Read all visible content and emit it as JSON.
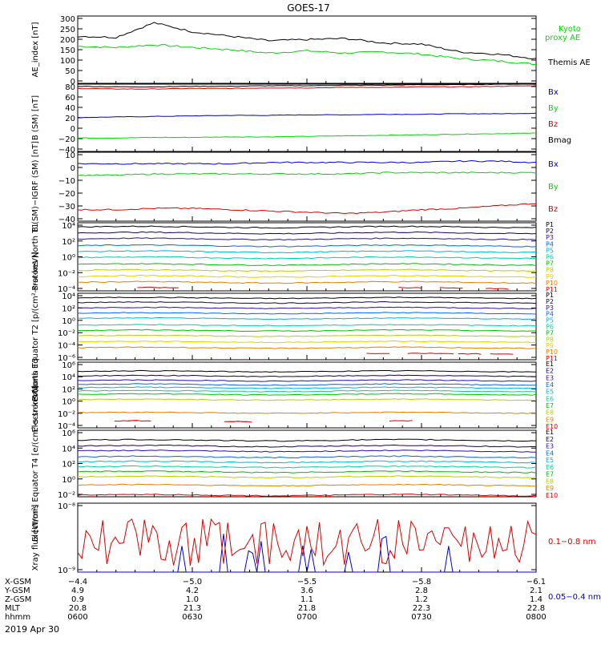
{
  "title": "GOES-17",
  "date_label": "2019 Apr 30",
  "colors": {
    "black": "#000000",
    "green": "#00d800",
    "blue": "#0000d8",
    "red": "#d80000",
    "p_colors": [
      "#000000",
      "#1a004d",
      "#2a0fa0",
      "#0066ff",
      "#00b4d8",
      "#00d0a0",
      "#00c000",
      "#b4d000",
      "#e0d000",
      "#e08000",
      "#e00000"
    ],
    "e_colors": [
      "#000000",
      "#1a004d",
      "#2a0fa0",
      "#0066ff",
      "#00b4d8",
      "#00d0a0",
      "#00c000",
      "#b4d000",
      "#e08000",
      "#e00000"
    ]
  },
  "chart_data": [
    {
      "type": "line",
      "panel": "ae_index",
      "ylabel": "AE_index [nT]",
      "ylim": [
        0,
        300
      ],
      "yticks": [
        "300",
        "250",
        "200",
        "150",
        "100",
        "50",
        "0"
      ],
      "x": [
        "0600",
        "0610",
        "0620",
        "0630",
        "0640",
        "0650",
        "0700",
        "0710",
        "0720",
        "0730",
        "0740",
        "0750",
        "0800"
      ],
      "series": [
        {
          "name": "Kyoto proxy AE",
          "color": "green",
          "values": [
            165,
            160,
            172,
            160,
            150,
            135,
            145,
            135,
            140,
            130,
            110,
            100,
            85
          ]
        },
        {
          "name": "Themis AE",
          "color": "black",
          "values": [
            210,
            205,
            270,
            230,
            210,
            190,
            195,
            200,
            180,
            175,
            140,
            130,
            110
          ]
        }
      ],
      "legend": [
        "Kyoto",
        "proxy AE",
        "Themis AE"
      ]
    },
    {
      "type": "line",
      "panel": "b_sm",
      "ylabel": "B (SM) [nT]",
      "ylim": [
        -45,
        80
      ],
      "yticks": [
        "80",
        "60",
        "40",
        "20",
        "0",
        "−20",
        "−40"
      ],
      "series": [
        {
          "name": "Bx",
          "color": "blue",
          "values": [
            18,
            19,
            20,
            21,
            22,
            22,
            23,
            23,
            24,
            24,
            25,
            25,
            26
          ]
        },
        {
          "name": "By",
          "color": "green",
          "values": [
            -20,
            -20,
            -19,
            -19,
            -18,
            -18,
            -17,
            -16,
            -15,
            -14,
            -13,
            -12,
            -11
          ]
        },
        {
          "name": "Bz",
          "color": "red",
          "values": [
            72,
            71,
            71,
            72,
            72,
            73,
            73,
            74,
            74,
            75,
            75,
            76,
            77
          ]
        },
        {
          "name": "Bmag",
          "color": "black",
          "values": [
            76,
            75,
            75,
            76,
            76,
            77,
            77,
            78,
            78,
            79,
            79,
            80,
            80
          ]
        }
      ]
    },
    {
      "type": "line",
      "panel": "b_sm_igrf",
      "ylabel": "B (SM)−IGRF (SM) [nT]",
      "ylim": [
        -42,
        12
      ],
      "yticks": [
        "10",
        "0",
        "−10",
        "−20",
        "−30",
        "−40"
      ],
      "series": [
        {
          "name": "Bx",
          "color": "blue",
          "values": [
            3,
            3,
            3,
            3,
            3,
            4,
            4,
            4,
            4,
            4,
            5,
            5,
            4
          ]
        },
        {
          "name": "By",
          "color": "green",
          "values": [
            -6,
            -6,
            -5,
            -5,
            -5,
            -5,
            -5,
            -5,
            -4,
            -4,
            -4,
            -4,
            -4
          ]
        },
        {
          "name": "Bz",
          "color": "red",
          "values": [
            -33,
            -33,
            -32,
            -32,
            -33,
            -34,
            -35,
            -36,
            -35,
            -33,
            -32,
            -30,
            -28
          ]
        }
      ]
    },
    {
      "type": "line",
      "panel": "protons_north",
      "ylabel": "Protons North T1",
      "log_decades": [
        -4,
        4
      ],
      "yticks": [
        "10⁴",
        "10²",
        "10⁰",
        "10⁻²",
        "10⁻⁴"
      ],
      "channels": [
        "P1",
        "P2",
        "P3",
        "P4",
        "P5",
        "P6",
        "P7",
        "P8",
        "P9",
        "P10",
        "P11"
      ],
      "log_values": [
        3.5,
        2.8,
        2.1,
        1.3,
        0.6,
        -0.1,
        -0.9,
        -1.6,
        -2.3,
        -3.0,
        -3.7
      ]
    },
    {
      "type": "line",
      "panel": "protons_equator",
      "ylabel": "Protons Equator T2 [p/(cm²-s-sr-keV)]",
      "log_decades": [
        -6,
        4
      ],
      "yticks": [
        "10⁴",
        "10²",
        "10⁰",
        "10⁻²",
        "10⁻⁴",
        "10⁻⁶"
      ],
      "channels": [
        "P1",
        "P2",
        "P3",
        "P4",
        "P5",
        "P6",
        "P7",
        "P8",
        "P9",
        "P10",
        "P11"
      ],
      "log_values": [
        3.3,
        2.6,
        1.8,
        1.0,
        0.2,
        -0.8,
        -1.6,
        -2.4,
        -3.3,
        -4.2,
        -5.1
      ]
    },
    {
      "type": "line",
      "panel": "electrons_north",
      "ylabel": "Electrons North T3",
      "log_decades": [
        -4,
        6
      ],
      "yticks": [
        "10⁶",
        "10⁴",
        "10²",
        "10⁰",
        "10⁻²",
        "10⁻⁴"
      ],
      "channels": [
        "E1",
        "E2",
        "E3",
        "E4",
        "E5",
        "E6",
        "E7",
        "E8",
        "E9",
        "E10"
      ],
      "log_values": [
        4.6,
        3.9,
        3.2,
        2.6,
        2.1,
        1.6,
        1.1,
        0.3,
        -1.7,
        -3.0
      ]
    },
    {
      "type": "line",
      "panel": "electrons_equator",
      "ylabel": "Electrons Equator T4 [e/(cm²-s-sr-keV)]",
      "log_decades": [
        -2,
        6
      ],
      "yticks": [
        "10⁶",
        "10⁴",
        "10²",
        "10⁰",
        "10⁻²"
      ],
      "channels": [
        "E1",
        "E2",
        "E3",
        "E4",
        "E5",
        "E6",
        "E7",
        "E8",
        "E9",
        "E10"
      ],
      "log_values": [
        4.8,
        4.1,
        3.5,
        2.8,
        2.2,
        1.6,
        1.0,
        0.4,
        -0.6,
        -1.8
      ]
    },
    {
      "type": "line",
      "panel": "xray",
      "ylabel": "Xray flux [W/m²]",
      "log_decades": [
        -9,
        -8
      ],
      "yticks": [
        "10⁻⁸",
        "10⁻⁹"
      ],
      "series": [
        {
          "name": "0.1−0.8 nm",
          "color": "red"
        },
        {
          "name": "0.05−0.4 nm",
          "color": "blue"
        }
      ]
    }
  ],
  "x_axis": {
    "row_labels": [
      "X-GSM",
      "Y-GSM",
      "Z-GSM",
      "MLT",
      "hhmm"
    ],
    "columns": [
      {
        "X-GSM": "−4.4",
        "Y-GSM": "4.9",
        "Z-GSM": "0.9",
        "MLT": "20.8",
        "hhmm": "0600"
      },
      {
        "X-GSM": "−5.0",
        "Y-GSM": "4.2",
        "Z-GSM": "1.0",
        "MLT": "21.3",
        "hhmm": "0630"
      },
      {
        "X-GSM": "−5.5",
        "Y-GSM": "3.6",
        "Z-GSM": "1.1",
        "MLT": "21.8",
        "hhmm": "0700"
      },
      {
        "X-GSM": "−5.8",
        "Y-GSM": "2.8",
        "Z-GSM": "1.2",
        "MLT": "22.3",
        "hhmm": "0730"
      },
      {
        "X-GSM": "−6.1",
        "Y-GSM": "2.1",
        "Z-GSM": "1.4",
        "MLT": "22.8",
        "hhmm": "0800"
      }
    ]
  }
}
